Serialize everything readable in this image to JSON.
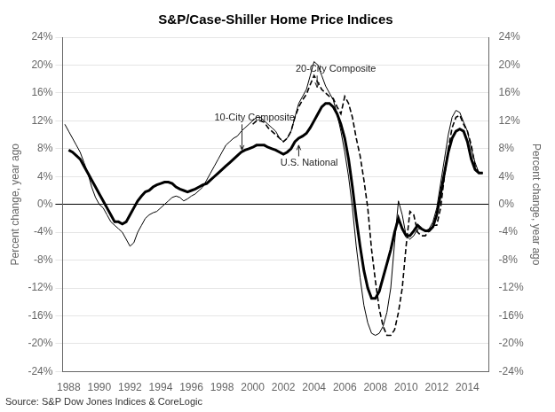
{
  "chart_data": {
    "type": "line",
    "title": "S&P/Case-Shiller Home Price Indices",
    "ylabel": "Percent change, year ago",
    "y2label": "Percent change, year ago",
    "source": "Source: S&P Dow Jones Indices & CoreLogic",
    "xlim": [
      1987.6,
      2015.4
    ],
    "xticks": [
      1988,
      1990,
      1992,
      1994,
      1996,
      1998,
      2000,
      2002,
      2004,
      2006,
      2008,
      2010,
      2012,
      2014
    ],
    "ylim": [
      -24,
      24
    ],
    "yticks": [
      {
        "value": -24,
        "label": "-24%"
      },
      {
        "value": -20,
        "label": "-20%"
      },
      {
        "value": -16,
        "label": "-16%"
      },
      {
        "value": -12,
        "label": "-12%"
      },
      {
        "value": -8,
        "label": "-8%"
      },
      {
        "value": -4,
        "label": "-4%"
      },
      {
        "value": 0,
        "label": "0%"
      },
      {
        "value": 4,
        "label": "4%"
      },
      {
        "value": 8,
        "label": "8%"
      },
      {
        "value": 12,
        "label": "12%"
      },
      {
        "value": 16,
        "label": "16%"
      },
      {
        "value": 20,
        "label": "20%"
      },
      {
        "value": 24,
        "label": "24%"
      }
    ],
    "y2lim": [
      -24,
      24
    ],
    "y2ticks": [
      {
        "value": -24,
        "label": "-24%"
      },
      {
        "value": -20,
        "label": "-20%"
      },
      {
        "value": -16,
        "label": "-16%"
      },
      {
        "value": -12,
        "label": "-12%"
      },
      {
        "value": -8,
        "label": "-8%"
      },
      {
        "value": -4,
        "label": "-4%"
      },
      {
        "value": 0,
        "label": "0%"
      },
      {
        "value": 4,
        "label": "4%"
      },
      {
        "value": 8,
        "label": "8%"
      },
      {
        "value": 12,
        "label": "12%"
      },
      {
        "value": 16,
        "label": "16%"
      },
      {
        "value": 20,
        "label": "20%"
      },
      {
        "value": 24,
        "label": "24%"
      }
    ],
    "grid": "y",
    "series": [
      {
        "color": "black",
        "line_style": "solid",
        "x": [
          1987.75,
          1988.0,
          1988.25,
          1988.5,
          1988.75,
          1989.0,
          1989.25,
          1989.5,
          1989.75,
          1990.0,
          1990.25,
          1990.5,
          1990.75,
          1991.0,
          1991.25,
          1991.5,
          1991.75,
          1992.0,
          1992.25,
          1992.5,
          1992.75,
          1993.0,
          1993.25,
          1993.5,
          1993.75,
          1994.0,
          1994.25,
          1994.5,
          1994.75,
          1995.0,
          1995.25,
          1995.5,
          1995.75,
          1996.0,
          1996.25,
          1996.5,
          1996.75,
          1997.0,
          1997.25,
          1997.5,
          1997.75,
          1998.0,
          1998.25,
          1998.5,
          1998.75,
          1999.0,
          1999.25,
          1999.5,
          1999.75,
          2000.0,
          2000.25,
          2000.5,
          2000.75,
          2001.0,
          2001.25,
          2001.5,
          2001.75,
          2002.0,
          2002.25,
          2002.5,
          2002.75,
          2003.0,
          2003.25,
          2003.5,
          2003.75,
          2004.0,
          2004.25,
          2004.5,
          2004.75,
          2005.0,
          2005.25,
          2005.5,
          2005.75,
          2006.0,
          2006.25,
          2006.5,
          2006.75,
          2007.0,
          2007.25,
          2007.5,
          2007.75,
          2008.0,
          2008.25,
          2008.5,
          2008.75,
          2009.0,
          2009.25,
          2009.5,
          2009.75,
          2010.0,
          2010.25,
          2010.5,
          2010.75,
          2011.0,
          2011.25,
          2011.5,
          2011.75,
          2012.0,
          2012.25,
          2012.5,
          2012.75,
          2013.0,
          2013.25,
          2013.5,
          2013.75,
          2014.0,
          2014.25,
          2014.5,
          2014.75,
          2015.0
        ],
        "values": [
          11.5,
          10.5,
          9.5,
          8.5,
          7.5,
          6.0,
          4.5,
          2.5,
          1.0,
          0.0,
          -0.5,
          -1.5,
          -2.5,
          -3.0,
          -3.5,
          -4.0,
          -5.0,
          -6.0,
          -5.5,
          -4.0,
          -3.0,
          -2.0,
          -1.5,
          -1.2,
          -1.0,
          -0.5,
          0.0,
          0.5,
          1.0,
          1.2,
          1.0,
          0.5,
          0.8,
          1.2,
          1.5,
          2.0,
          2.5,
          3.5,
          4.5,
          5.5,
          6.5,
          7.5,
          8.5,
          9.0,
          9.5,
          9.8,
          10.5,
          11.0,
          11.5,
          12.0,
          12.5,
          12.5,
          12.0,
          11.5,
          11.0,
          10.5,
          9.5,
          9.0,
          9.5,
          10.5,
          12.5,
          14.5,
          15.5,
          16.5,
          18.5,
          20.5,
          20.0,
          18.5,
          17.0,
          16.0,
          15.0,
          13.0,
          10.5,
          7.5,
          4.0,
          -0.5,
          -6.0,
          -10.5,
          -14.5,
          -17.0,
          -18.5,
          -18.8,
          -18.5,
          -17.5,
          -15.5,
          -12.0,
          -5.5,
          0.5,
          -1.5,
          -4.5,
          -5.0,
          -4.5,
          -3.5,
          -3.5,
          -3.8,
          -3.5,
          -2.5,
          -0.5,
          3.0,
          6.5,
          10.0,
          12.5,
          13.5,
          13.2,
          11.8,
          10.5,
          8.0,
          6.0,
          4.5,
          4.5
        ]
      },
      {
        "color": "black",
        "line_style": "dashed",
        "x": [
          2000.0,
          2000.25,
          2000.5,
          2000.75,
          2001.0,
          2001.25,
          2001.5,
          2001.75,
          2002.0,
          2002.25,
          2002.5,
          2002.75,
          2003.0,
          2003.25,
          2003.5,
          2003.75,
          2004.0,
          2004.25,
          2004.5,
          2004.75,
          2005.0,
          2005.25,
          2005.5,
          2005.75,
          2006.0,
          2006.25,
          2006.5,
          2006.75,
          2007.0,
          2007.25,
          2007.5,
          2007.75,
          2008.0,
          2008.25,
          2008.5,
          2008.75,
          2009.0,
          2009.25,
          2009.5,
          2009.75,
          2010.0,
          2010.25,
          2010.5,
          2010.75,
          2011.0,
          2011.25,
          2011.5,
          2011.75,
          2012.0,
          2012.25,
          2012.5,
          2012.75,
          2013.0,
          2013.25,
          2013.5,
          2013.75,
          2014.0,
          2014.25,
          2014.5,
          2014.75,
          2015.0
        ],
        "values": [
          11.5,
          12.0,
          12.0,
          11.8,
          11.0,
          10.5,
          10.0,
          9.5,
          9.0,
          9.5,
          10.5,
          12.5,
          14.0,
          15.0,
          15.8,
          17.2,
          18.5,
          17.5,
          16.5,
          16.0,
          15.5,
          15.2,
          14.0,
          13.0,
          15.5,
          14.5,
          12.5,
          9.5,
          7.0,
          3.5,
          -0.5,
          -6.5,
          -11.0,
          -15.0,
          -17.5,
          -18.8,
          -18.8,
          -18.0,
          -15.5,
          -12.0,
          -6.0,
          -1.0,
          -1.5,
          -4.0,
          -4.5,
          -4.5,
          -3.8,
          -3.0,
          -3.0,
          -0.5,
          4.0,
          8.0,
          11.0,
          12.5,
          12.8,
          11.5,
          10.5,
          8.5,
          5.5,
          4.5,
          4.5
        ]
      },
      {
        "color": "black",
        "line_style": "solid",
        "x": [
          1988.0,
          1988.25,
          1988.5,
          1988.75,
          1989.0,
          1989.25,
          1989.5,
          1989.75,
          1990.0,
          1990.25,
          1990.5,
          1990.75,
          1991.0,
          1991.25,
          1991.5,
          1991.75,
          1992.0,
          1992.25,
          1992.5,
          1992.75,
          1993.0,
          1993.25,
          1993.5,
          1993.75,
          1994.0,
          1994.25,
          1994.5,
          1994.75,
          1995.0,
          1995.25,
          1995.5,
          1995.75,
          1996.0,
          1996.25,
          1996.5,
          1996.75,
          1997.0,
          1997.25,
          1997.5,
          1997.75,
          1998.0,
          1998.25,
          1998.5,
          1998.75,
          1999.0,
          1999.25,
          1999.5,
          1999.75,
          2000.0,
          2000.25,
          2000.5,
          2000.75,
          2001.0,
          2001.25,
          2001.5,
          2001.75,
          2002.0,
          2002.25,
          2002.5,
          2002.75,
          2003.0,
          2003.25,
          2003.5,
          2003.75,
          2004.0,
          2004.25,
          2004.5,
          2004.75,
          2005.0,
          2005.25,
          2005.5,
          2005.75,
          2006.0,
          2006.25,
          2006.5,
          2006.75,
          2007.0,
          2007.25,
          2007.5,
          2007.75,
          2008.0,
          2008.25,
          2008.5,
          2008.75,
          2009.0,
          2009.25,
          2009.5,
          2009.75,
          2010.0,
          2010.25,
          2010.5,
          2010.75,
          2011.0,
          2011.25,
          2011.5,
          2011.75,
          2012.0,
          2012.25,
          2012.5,
          2012.75,
          2013.0,
          2013.25,
          2013.5,
          2013.75,
          2014.0,
          2014.25,
          2014.5,
          2014.75,
          2015.0
        ],
        "values": [
          7.8,
          7.5,
          7.0,
          6.5,
          5.5,
          4.5,
          3.5,
          2.5,
          1.5,
          0.5,
          -0.5,
          -1.5,
          -2.5,
          -2.5,
          -2.8,
          -2.5,
          -1.5,
          -0.5,
          0.5,
          1.2,
          1.8,
          2.0,
          2.5,
          2.8,
          3.0,
          3.2,
          3.2,
          3.0,
          2.5,
          2.2,
          2.0,
          1.8,
          2.0,
          2.2,
          2.5,
          2.8,
          3.0,
          3.5,
          4.0,
          4.5,
          5.0,
          5.5,
          6.0,
          6.5,
          7.0,
          7.5,
          7.8,
          8.0,
          8.2,
          8.5,
          8.5,
          8.5,
          8.2,
          8.0,
          7.8,
          7.5,
          7.2,
          7.5,
          8.0,
          9.0,
          9.5,
          9.8,
          10.2,
          11.0,
          12.0,
          13.0,
          14.0,
          14.5,
          14.5,
          14.0,
          13.0,
          11.5,
          9.5,
          6.5,
          2.5,
          -2.0,
          -6.0,
          -9.5,
          -12.0,
          -13.5,
          -13.5,
          -12.5,
          -10.5,
          -8.5,
          -6.5,
          -4.0,
          -2.0,
          -3.5,
          -4.5,
          -4.5,
          -3.8,
          -3.0,
          -3.5,
          -3.8,
          -3.8,
          -3.2,
          -1.5,
          1.5,
          4.5,
          7.5,
          9.5,
          10.5,
          10.8,
          10.5,
          9.0,
          6.5,
          5.0,
          4.5,
          4.5
        ]
      }
    ],
    "annotations": [
      {
        "text": "10-City Composite",
        "x": 1999.3,
        "y": 7.8,
        "text_x": 1997.5,
        "text_y": 12.0
      },
      {
        "text": "20-City Composite",
        "x": 2004.2,
        "y": 16.8,
        "text_x": 2002.8,
        "text_y": 19.0
      },
      {
        "text": "U.S. National",
        "x": 2003.0,
        "y": 8.5,
        "text_x": 2001.8,
        "text_y": 5.5
      }
    ]
  }
}
